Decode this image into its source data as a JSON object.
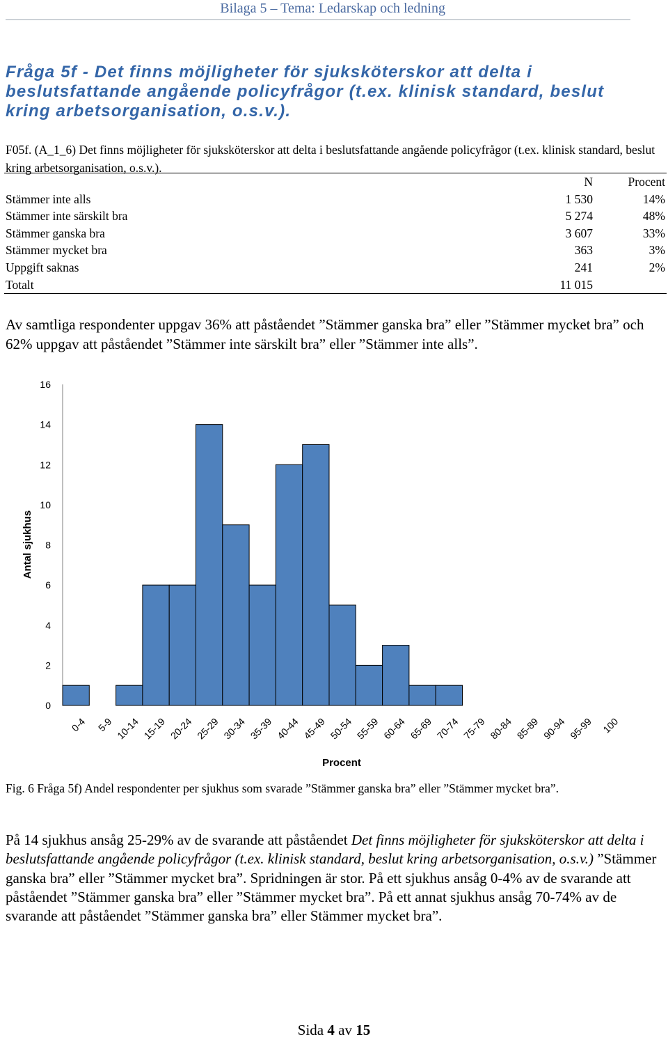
{
  "header": {
    "text": "Bilaga 5 – Tema: Ledarskap och ledning"
  },
  "question": {
    "text": "Fråga 5f - Det finns möjligheter för sjuksköterskor att delta i beslutsfattande angående policyfrågor (t.ex. klinisk standard, beslut kring arbetsorganisation, o.s.v.)."
  },
  "table": {
    "caption": "F05f. (A_1_6) Det finns möjligheter för sjuksköterskor att delta i beslutsfattande angående policyfrågor (t.ex. klinisk standard, beslut kring arbetsorganisation, o.s.v.).",
    "columns": [
      "",
      "N",
      "Procent"
    ],
    "rows": [
      {
        "label": "Stämmer inte alls",
        "n": "1 530",
        "pct": "14%"
      },
      {
        "label": "Stämmer inte särskilt bra",
        "n": "5 274",
        "pct": "48%"
      },
      {
        "label": "Stämmer ganska bra",
        "n": "3 607",
        "pct": "33%"
      },
      {
        "label": "Stämmer mycket bra",
        "n": "363",
        "pct": "3%"
      },
      {
        "label": "Uppgift saknas",
        "n": "241",
        "pct": "2%"
      }
    ],
    "total": {
      "label": "Totalt",
      "n": "11 015",
      "pct": ""
    }
  },
  "summary": {
    "text": "Av samtliga respondenter uppgav 36% att påståendet ”Stämmer ganska bra” eller ”Stämmer mycket bra” och 62% uppgav att påståendet ”Stämmer inte särskilt bra” eller ”Stämmer inte alls”."
  },
  "chart_data": {
    "type": "bar",
    "title": "",
    "xlabel": "Procent",
    "ylabel": "Antal sjukhus",
    "ylim": [
      0,
      16
    ],
    "yticks": [
      0,
      2,
      4,
      6,
      8,
      10,
      12,
      14,
      16
    ],
    "grid": false,
    "legend": "none",
    "bar_color": "#4f81bd",
    "categories": [
      "0-4",
      "5-9",
      "10-14",
      "15-19",
      "20-24",
      "25-29",
      "30-34",
      "35-39",
      "40-44",
      "45-49",
      "50-54",
      "55-59",
      "60-64",
      "65-69",
      "70-74",
      "75-79",
      "80-84",
      "85-89",
      "90-94",
      "95-99",
      "100"
    ],
    "values": [
      1,
      0,
      1,
      6,
      6,
      14,
      9,
      6,
      12,
      13,
      5,
      2,
      3,
      1,
      1,
      0,
      0,
      0,
      0,
      0,
      0
    ]
  },
  "figure": {
    "caption": "Fig. 6 Fråga 5f) Andel respondenter per sjukhus som svarade ”Stämmer ganska bra” eller ”Stämmer mycket bra”."
  },
  "body": {
    "part1": "På 14 sjukhus ansåg 25-29% av de svarande att påståendet ",
    "part2_italic": "Det finns möjligheter för sjuksköterskor att delta i beslutsfattande angående policyfrågor (t.ex. klinisk standard, beslut kring arbetsorganisation, o.s.v.)",
    "part3": " ”Stämmer ganska bra” eller ”Stämmer mycket bra”. Spridningen är stor. På ett sjukhus ansåg 0-4% av de svarande att påståendet ”Stämmer ganska bra” eller ”Stämmer mycket bra”. På ett annat sjukhus ansåg 70-74% av de svarande att påståendet ”Stämmer ganska bra” eller Stämmer mycket bra”."
  },
  "footer": {
    "prefix": "Sida ",
    "page": "4",
    "middle": " av ",
    "total": "15"
  }
}
